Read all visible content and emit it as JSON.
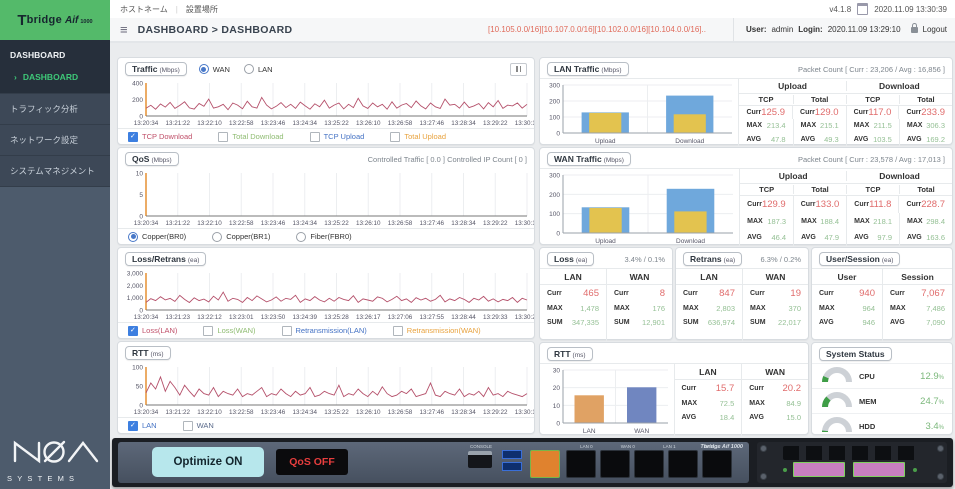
{
  "topbar": {
    "hostname": "ホストネーム",
    "location": "設置場所",
    "version": "v4.1.8",
    "datetime": "2020.11.09  13:30:39"
  },
  "header": {
    "breadcrumb": "DASHBOARD > DASHBOARD",
    "networks": "[10.105.0.0/16][10.107.0.0/16][10.102.0.0/16][10.104.0.0/16]..",
    "user_label": "User:",
    "user_name": "admin",
    "login_label": "Login:",
    "login_time": "2020.11.09  13:29:10",
    "logout": "Logout"
  },
  "sidebar": {
    "logo_t": "T",
    "logo_rest": "bridge",
    "logo_aif": "Aif",
    "logo_num": "1000",
    "section_title": "DASHBOARD",
    "active_arrow": "›",
    "active_item": "DASHBOARD",
    "items": [
      "トラフィック分析",
      "ネットワーク設定",
      "システムマネジメント"
    ],
    "footer_brand": "SYSTEMS"
  },
  "labels": {
    "curr": "Curr",
    "max": "MAX",
    "avg": "AVG",
    "sum": "SUM",
    "tcp": "TCP",
    "total": "Total",
    "upload": "Upload",
    "download": "Download",
    "lan": "LAN",
    "wan": "WAN",
    "user": "User",
    "session": "Session"
  },
  "panels": {
    "traffic": {
      "title": "Traffic",
      "unit": "(Mbps)",
      "radios": [
        {
          "label": "WAN",
          "selected": true
        },
        {
          "label": "LAN",
          "selected": false
        }
      ],
      "legend": [
        {
          "label": "TCP Download",
          "checked": true,
          "color": "#c0506a"
        },
        {
          "label": "Total Download",
          "checked": false,
          "color": "#8fbc72"
        },
        {
          "label": "TCP Upload",
          "checked": false,
          "color": "#4472c4"
        },
        {
          "label": "Total Upload",
          "checked": false,
          "color": "#e8a23d"
        }
      ],
      "chart": {
        "type": "line",
        "color": "#b5516b",
        "ymax": 400,
        "yticks": [
          "400",
          "200",
          "0"
        ],
        "xticks": [
          "13:20:34",
          "13:21:22",
          "13:22:10",
          "13:22:58",
          "13:23:46",
          "13:24:34",
          "13:25:22",
          "13:26:10",
          "13:26:58",
          "13:27:46",
          "13:28:34",
          "13:29:22",
          "13:30:10"
        ],
        "series": [
          95,
          130,
          82,
          145,
          108,
          165,
          92,
          128,
          172,
          98,
          84,
          152,
          118,
          205,
          96,
          112,
          142,
          76,
          158,
          132,
          88,
          178,
          112,
          96,
          225,
          132,
          86,
          118,
          162,
          102,
          142,
          92,
          168,
          122,
          82,
          148,
          112,
          192,
          96,
          132,
          158,
          86,
          142,
          102,
          215,
          122,
          92,
          158,
          112,
          142,
          82,
          172,
          96,
          132,
          152,
          102,
          182,
          122,
          86,
          158,
          112,
          92,
          205,
          132,
          142,
          96,
          168,
          102,
          122,
          152,
          86,
          162,
          112,
          188,
          92,
          132,
          122,
          158,
          96,
          142
        ]
      }
    },
    "qos": {
      "title": "QoS",
      "unit": "(Mbps)",
      "info": "Controlled Traffic [ 0.0 ]  Controlled IP Count [ 0 ]",
      "radios": [
        {
          "label": "Copper(BR0)",
          "selected": true
        },
        {
          "label": "Copper(BR1)",
          "selected": false
        },
        {
          "label": "Fiber(FBR0)",
          "selected": false
        }
      ],
      "chart": {
        "type": "line",
        "color": "#b5516b",
        "ymax": 10,
        "yticks": [
          "10",
          "5",
          "0"
        ],
        "xticks": [
          "13:20:34",
          "13:21:22",
          "13:22:10",
          "13:22:58",
          "13:23:46",
          "13:24:34",
          "13:25:22",
          "13:26:10",
          "13:26:58",
          "13:27:46",
          "13:28:34",
          "13:29:22",
          "13:30:10"
        ],
        "series": []
      }
    },
    "loss_retrans": {
      "title": "Loss/Retrans",
      "unit": "(ea)",
      "legend": [
        {
          "label": "Loss(LAN)",
          "checked": true,
          "color": "#c0506a"
        },
        {
          "label": "Loss(WAN)",
          "checked": false,
          "color": "#8fbc72"
        },
        {
          "label": "Retransmission(LAN)",
          "checked": false,
          "color": "#4472c4"
        },
        {
          "label": "Retransmission(WAN)",
          "checked": false,
          "color": "#e8a23d"
        }
      ],
      "chart": {
        "type": "line",
        "color": "#b5516b",
        "ymax": 3000,
        "yticks": [
          "3,000",
          "2,000",
          "1,000",
          "0"
        ],
        "xticks": [
          "13:20:34",
          "13:21:23",
          "13:22:12",
          "13:23:01",
          "13:23:50",
          "13:24:39",
          "13:25:28",
          "13:26:17",
          "13:27:06",
          "13:27:55",
          "13:28:44",
          "13:29:33",
          "13:30:22"
        ],
        "series": [
          620,
          920,
          760,
          1080,
          820,
          940,
          700,
          1180,
          860,
          610,
          990,
          760,
          880,
          660,
          1120,
          810,
          1450,
          710,
          950,
          860,
          620,
          1010,
          760,
          1140,
          900,
          660,
          810,
          1060,
          710,
          950,
          860,
          1190,
          620,
          900,
          760,
          1090,
          810,
          660,
          950,
          710,
          1010,
          860,
          760,
          1160,
          620,
          900,
          810,
          710,
          1060,
          950,
          660,
          860,
          1110,
          760,
          900,
          620,
          1000,
          810,
          950,
          710,
          860,
          1190,
          660,
          900,
          760,
          1010,
          860,
          620,
          950,
          810,
          1100,
          710,
          900,
          660,
          860,
          760,
          1010,
          620,
          950,
          810
        ]
      }
    },
    "rtt_line": {
      "title": "RTT",
      "unit": "(ms)",
      "legend": [
        {
          "label": "LAN",
          "checked": true,
          "color": "#4472c4"
        },
        {
          "label": "WAN",
          "checked": false,
          "color": "#5a6a8a"
        }
      ],
      "chart": {
        "type": "line",
        "color": "#b5516b",
        "ymax": 100,
        "yticks": [
          "100",
          "50",
          "0"
        ],
        "xticks": [
          "13:20:34",
          "13:21:22",
          "13:22:10",
          "13:22:58",
          "13:23:46",
          "13:24:34",
          "13:25:22",
          "13:26:10",
          "13:26:58",
          "13:27:46",
          "13:28:34",
          "13:29:22",
          "13:30:10"
        ],
        "series": [
          32,
          58,
          42,
          74,
          36,
          62,
          46,
          26,
          52,
          36,
          22,
          42,
          30,
          26,
          46,
          22,
          36,
          30,
          26,
          42,
          22,
          30,
          26,
          36,
          46,
          22,
          30,
          26,
          42,
          30,
          22,
          36,
          26,
          30,
          46,
          22,
          26,
          36,
          30,
          26,
          52,
          22,
          30,
          26,
          42,
          30,
          22,
          36,
          26,
          48,
          30,
          22,
          26,
          36,
          30,
          42,
          22,
          26,
          30,
          58,
          26,
          22,
          36,
          30,
          26,
          42,
          22,
          30,
          26,
          36,
          22,
          46,
          26,
          30,
          22,
          36,
          30,
          26,
          22,
          30
        ]
      }
    },
    "lan_traffic": {
      "title": "LAN Traffic",
      "unit": "(Mbps)",
      "packet_count": "Packet Count  [ Curr : 23,206 / Avg : 16,856 ]",
      "bars": {
        "type": "bar",
        "ymax": 300,
        "yticks": [
          "300",
          "200",
          "100",
          "0"
        ],
        "groups": [
          {
            "label": "Upload",
            "bars": [
              {
                "v": 129.0,
                "color": "#6fa8dc"
              },
              {
                "v": 125.9,
                "color": "#e3c34f"
              }
            ]
          },
          {
            "label": "Download",
            "bars": [
              {
                "v": 233.9,
                "color": "#6fa8dc"
              },
              {
                "v": 117.0,
                "color": "#e3c34f"
              }
            ]
          }
        ]
      },
      "table": {
        "upload_tcp": {
          "curr": "125.9",
          "max": "213.4",
          "avg": "47.8"
        },
        "upload_total": {
          "curr": "129.0",
          "max": "215.1",
          "avg": "49.3"
        },
        "download_tcp": {
          "curr": "117.0",
          "max": "211.5",
          "avg": "103.5"
        },
        "download_total": {
          "curr": "233.9",
          "max": "306.3",
          "avg": "169.2"
        }
      }
    },
    "wan_traffic": {
      "title": "WAN Traffic",
      "unit": "(Mbps)",
      "packet_count": "Packet Count  [ Curr : 23,578 / Avg : 17,013 ]",
      "bars": {
        "type": "bar",
        "ymax": 300,
        "yticks": [
          "300",
          "200",
          "100",
          "0"
        ],
        "groups": [
          {
            "label": "Upload",
            "bars": [
              {
                "v": 133.0,
                "color": "#6fa8dc"
              },
              {
                "v": 129.9,
                "color": "#e3c34f"
              }
            ]
          },
          {
            "label": "Download",
            "bars": [
              {
                "v": 228.7,
                "color": "#6fa8dc"
              },
              {
                "v": 111.8,
                "color": "#e3c34f"
              }
            ]
          }
        ]
      },
      "table": {
        "upload_tcp": {
          "curr": "129.9",
          "max": "187.3",
          "avg": "46.4"
        },
        "upload_total": {
          "curr": "133.0",
          "max": "188.4",
          "avg": "47.9"
        },
        "download_tcp": {
          "curr": "111.8",
          "max": "218.1",
          "avg": "97.9"
        },
        "download_total": {
          "curr": "228.7",
          "max": "298.4",
          "avg": "163.6"
        }
      }
    },
    "loss": {
      "title": "Loss",
      "unit": "(ea)",
      "percent": "3.4% / 0.1%",
      "cols": {
        "lan": {
          "curr": "465",
          "max": "1,478",
          "sum": "347,335"
        },
        "wan": {
          "curr": "8",
          "max": "176",
          "sum": "12,901"
        }
      }
    },
    "retrans": {
      "title": "Retrans",
      "unit": "(ea)",
      "percent": "6.3% / 0.2%",
      "cols": {
        "lan": {
          "curr": "847",
          "max": "2,803",
          "sum": "636,974"
        },
        "wan": {
          "curr": "19",
          "max": "370",
          "sum": "22,017"
        }
      }
    },
    "user_session": {
      "title": "User/Session",
      "unit": "(ea)",
      "cols": {
        "user": {
          "curr": "940",
          "max": "964",
          "avg": "946"
        },
        "session": {
          "curr": "7,067",
          "max": "7,486",
          "avg": "7,090"
        }
      }
    },
    "rtt": {
      "title": "RTT",
      "unit": "(ms)",
      "bars": {
        "type": "bar",
        "ymax": 30,
        "yticks": [
          "30",
          "20",
          "10",
          "0"
        ],
        "groups": [
          {
            "label": "LAN",
            "bars": [
              {
                "v": 15.7,
                "color": "#e0a264"
              }
            ]
          },
          {
            "label": "WAN",
            "bars": [
              {
                "v": 20.2,
                "color": "#7086c0"
              }
            ]
          }
        ]
      },
      "table": {
        "lan": {
          "curr": "15.7",
          "max": "72.5",
          "avg": "18.4"
        },
        "wan": {
          "curr": "20.2",
          "max": "84.9",
          "avg": "15.0"
        }
      }
    },
    "system_status": {
      "title": "System Status",
      "items": [
        {
          "label": "CPU",
          "value": "12.9",
          "unit": "%",
          "pct": 12.9
        },
        {
          "label": "MEM",
          "value": "24.7",
          "unit": "%",
          "pct": 24.7
        },
        {
          "label": "HDD",
          "value": "3.4",
          "unit": "%",
          "pct": 3.4
        }
      ]
    }
  },
  "device": {
    "optimize_button": "Optimize ON",
    "qos_button": "QoS OFF",
    "brand": "Tbridge Aif 1000",
    "console_label": "CONSOLE",
    "port_labels": [
      "LAN 0",
      "WAN 0",
      "LAN 1",
      "WAN 1"
    ]
  }
}
